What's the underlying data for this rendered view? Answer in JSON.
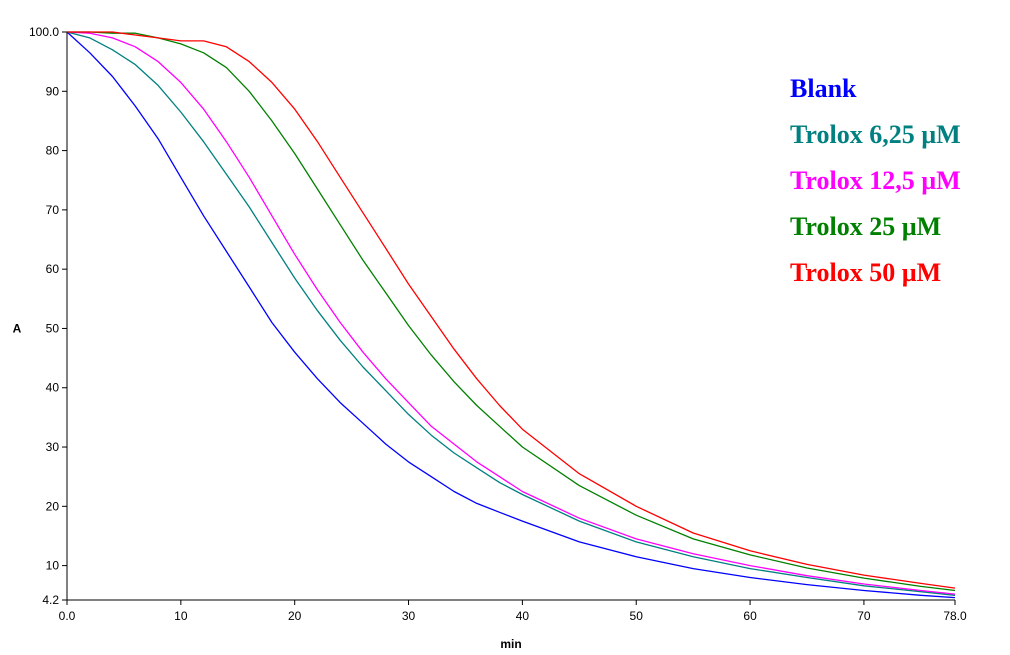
{
  "chart_data": {
    "type": "line",
    "title": "",
    "xlabel": "min",
    "ylabel": "A",
    "xlim": [
      0.0,
      78.0
    ],
    "ylim": [
      4.2,
      100.0
    ],
    "grid": false,
    "legend_position": "top-right",
    "x_ticks": [
      "0.0",
      "10",
      "20",
      "30",
      "40",
      "50",
      "60",
      "70",
      "78.0"
    ],
    "x_tick_values": [
      0,
      10,
      20,
      30,
      40,
      50,
      60,
      70,
      78
    ],
    "y_ticks": [
      "4.2",
      "10",
      "20",
      "30",
      "40",
      "50",
      "60",
      "70",
      "80",
      "90",
      "100.0"
    ],
    "y_tick_values": [
      4.2,
      10,
      20,
      30,
      40,
      50,
      60,
      70,
      80,
      90,
      100
    ],
    "x": [
      0,
      2,
      4,
      6,
      8,
      10,
      12,
      14,
      16,
      18,
      20,
      22,
      24,
      26,
      28,
      30,
      32,
      34,
      36,
      38,
      40,
      45,
      50,
      55,
      60,
      65,
      70,
      75,
      78
    ],
    "series": [
      {
        "name": "Blank",
        "color": "#0000ff",
        "values": [
          100,
          96.5,
          92.5,
          87.5,
          82,
          75.5,
          69,
          63,
          57,
          51,
          46,
          41.5,
          37.5,
          34,
          30.5,
          27.5,
          25,
          22.5,
          20.5,
          19,
          17.5,
          14,
          11.5,
          9.5,
          8,
          6.8,
          5.8,
          5.0,
          4.6
        ]
      },
      {
        "name": "Trolox 6,25 µM",
        "color": "#008080",
        "values": [
          100,
          99,
          97,
          94.5,
          91,
          86.5,
          81.5,
          76,
          70.5,
          64.5,
          58.5,
          53,
          48,
          43.5,
          39.5,
          35.5,
          32,
          29,
          26.5,
          24,
          22,
          17.5,
          14,
          11.5,
          9.5,
          8,
          6.6,
          5.6,
          5.0
        ]
      },
      {
        "name": "Trolox 12,5 µM",
        "color": "#ff00ff",
        "values": [
          100,
          99.8,
          99,
          97.5,
          95,
          91.5,
          87,
          81.5,
          75.5,
          69,
          62.5,
          56.5,
          51,
          46,
          41.5,
          37.5,
          33.5,
          30.5,
          27.5,
          25,
          22.5,
          18,
          14.5,
          12,
          10,
          8.3,
          6.9,
          5.8,
          5.2
        ]
      },
      {
        "name": "Trolox 25 µM",
        "color": "#008000",
        "values": [
          100,
          100,
          99.8,
          99.8,
          99,
          98,
          96.5,
          94,
          90,
          85,
          79.5,
          73.5,
          67.5,
          61.5,
          56,
          50.5,
          45.5,
          41,
          37,
          33.5,
          30,
          23.5,
          18.5,
          14.5,
          11.8,
          9.6,
          7.9,
          6.5,
          5.8
        ]
      },
      {
        "name": "Trolox 50 µM",
        "color": "#ff0000",
        "values": [
          100,
          100,
          100,
          99.5,
          99,
          98.5,
          98.5,
          97.5,
          95,
          91.5,
          87,
          81.5,
          75.5,
          69.5,
          63.5,
          57.5,
          52,
          46.5,
          41.5,
          37,
          33,
          25.5,
          20,
          15.5,
          12.5,
          10.2,
          8.4,
          7.0,
          6.2
        ]
      }
    ]
  }
}
